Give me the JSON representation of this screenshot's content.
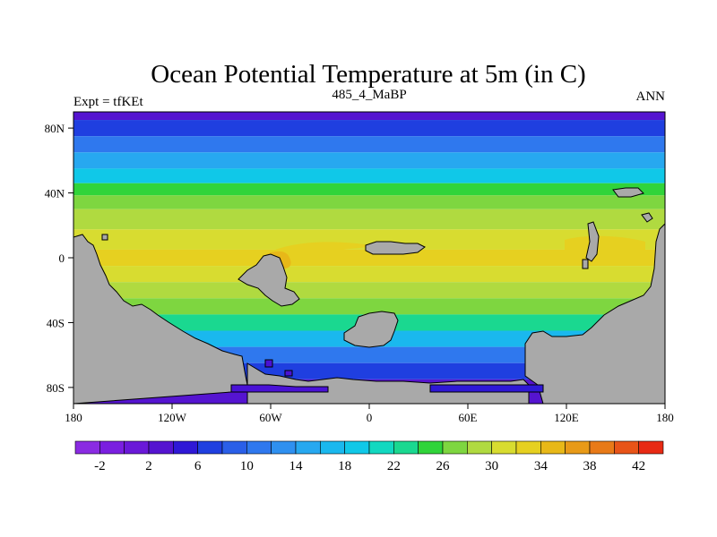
{
  "chart_data": {
    "type": "heatmap",
    "title": "Ocean Potential Temperature at 5m (in C)",
    "subtitle_left": "Expt = tfKEt",
    "subtitle_center": "485_4_MaBP",
    "subtitle_right": "ANN",
    "x_ticks": [
      "180",
      "120W",
      "60W",
      "0",
      "60E",
      "120E",
      "180"
    ],
    "y_ticks": [
      "80N",
      "40N",
      "0",
      "40S",
      "80S"
    ],
    "xlim": [
      -180,
      180
    ],
    "ylim": [
      -90,
      90
    ],
    "colorbar": {
      "levels": [
        -4,
        -2,
        0,
        2,
        4,
        6,
        8,
        10,
        12,
        14,
        16,
        18,
        20,
        22,
        24,
        26,
        28,
        30,
        32,
        34,
        36,
        38,
        40,
        42,
        44
      ],
      "labels": [
        "-2",
        "2",
        "6",
        "10",
        "14",
        "18",
        "22",
        "26",
        "30",
        "34",
        "38",
        "42"
      ],
      "colors": [
        "#8a2be2",
        "#7a1fe0",
        "#6a19d8",
        "#5514d0",
        "#2f18d6",
        "#1f3fe0",
        "#2a5fe8",
        "#2f78ee",
        "#2f90f0",
        "#27a8f0",
        "#1ab8ee",
        "#10c8e8",
        "#12d8c0",
        "#1ad890",
        "#30d43a",
        "#7ed640",
        "#b0da40",
        "#d8dc30",
        "#e6d020",
        "#e8b818",
        "#e89a18",
        "#e87a18",
        "#e85418",
        "#e82a14"
      ]
    },
    "land_color": "#a9a9a9",
    "zonal_profile": [
      {
        "lat": 90,
        "value": 3
      },
      {
        "lat": 80,
        "value": 6
      },
      {
        "lat": 70,
        "value": 10
      },
      {
        "lat": 60,
        "value": 14
      },
      {
        "lat": 50,
        "value": 19
      },
      {
        "lat": 42,
        "value": 24
      },
      {
        "lat": 35,
        "value": 27
      },
      {
        "lat": 25,
        "value": 29
      },
      {
        "lat": 10,
        "value": 31
      },
      {
        "lat": 0,
        "value": 32
      },
      {
        "lat": -10,
        "value": 31
      },
      {
        "lat": -20,
        "value": 29
      },
      {
        "lat": -30,
        "value": 26
      },
      {
        "lat": -40,
        "value": 22
      },
      {
        "lat": -50,
        "value": 17
      },
      {
        "lat": -60,
        "value": 11
      },
      {
        "lat": -70,
        "value": 6
      },
      {
        "lat": -80,
        "value": 2
      }
    ]
  }
}
